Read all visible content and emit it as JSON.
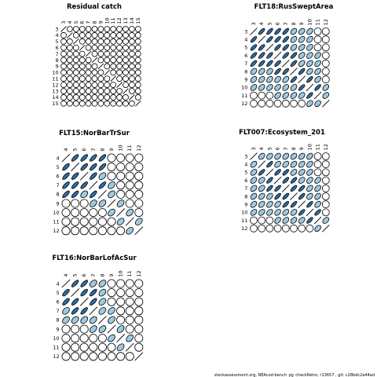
{
  "footer": "stockassessment.org, NEAcod-bench_pg_checkRetro, r13657 , git: c28bdc2a44ad",
  "colors": {
    "strong": "#2f6ea6",
    "light": "#9ec9e2",
    "empty": "#ffffff",
    "outline": "#000000"
  },
  "chart_data": [
    {
      "type": "heatmap",
      "title": "Residual catch",
      "ages": [
        3,
        4,
        5,
        6,
        7,
        8,
        9,
        10,
        11,
        12,
        13,
        14,
        15
      ],
      "note": "correlation matrix of residuals; all cells near zero (circles)",
      "cells": []
    },
    {
      "type": "heatmap",
      "title": "FLT18:RusSweptArea",
      "ages": [
        3,
        4,
        5,
        6,
        7,
        8,
        9,
        10,
        11,
        12
      ],
      "cells": [
        [
          3,
          4,
          "s"
        ],
        [
          3,
          5,
          "s"
        ],
        [
          3,
          6,
          "s"
        ],
        [
          3,
          7,
          "s"
        ],
        [
          3,
          8,
          "l"
        ],
        [
          3,
          9,
          "l"
        ],
        [
          3,
          10,
          "l"
        ],
        [
          4,
          5,
          "s"
        ],
        [
          4,
          6,
          "s"
        ],
        [
          4,
          7,
          "s"
        ],
        [
          4,
          8,
          "l"
        ],
        [
          4,
          9,
          "l"
        ],
        [
          4,
          10,
          "l"
        ],
        [
          5,
          6,
          "s"
        ],
        [
          5,
          7,
          "s"
        ],
        [
          5,
          8,
          "l"
        ],
        [
          5,
          9,
          "l"
        ],
        [
          5,
          10,
          "l"
        ],
        [
          6,
          7,
          "s"
        ],
        [
          6,
          8,
          "s"
        ],
        [
          6,
          9,
          "l"
        ],
        [
          6,
          10,
          "l"
        ],
        [
          6,
          11,
          "l"
        ],
        [
          7,
          8,
          "s"
        ],
        [
          7,
          9,
          "l"
        ],
        [
          7,
          10,
          "l"
        ],
        [
          7,
          11,
          "l"
        ],
        [
          8,
          9,
          "s"
        ],
        [
          8,
          10,
          "l"
        ],
        [
          8,
          11,
          "l"
        ],
        [
          9,
          10,
          "s"
        ],
        [
          9,
          11,
          "l"
        ],
        [
          10,
          11,
          "s"
        ],
        [
          10,
          12,
          "l"
        ],
        [
          11,
          12,
          "l"
        ]
      ]
    },
    {
      "type": "heatmap",
      "title": "FLT15:NorBarTrSur",
      "ages": [
        4,
        5,
        6,
        7,
        8,
        9,
        10,
        11,
        12
      ],
      "cells": [
        [
          4,
          5,
          "s"
        ],
        [
          4,
          6,
          "s"
        ],
        [
          4,
          7,
          "s"
        ],
        [
          4,
          8,
          "s"
        ],
        [
          5,
          6,
          "s"
        ],
        [
          5,
          7,
          "s"
        ],
        [
          5,
          8,
          "s"
        ],
        [
          6,
          7,
          "s"
        ],
        [
          6,
          8,
          "l"
        ],
        [
          7,
          8,
          "s"
        ],
        [
          7,
          9,
          "l"
        ],
        [
          8,
          9,
          "l"
        ],
        [
          9,
          10,
          "l"
        ],
        [
          10,
          11,
          "l"
        ],
        [
          11,
          12,
          "l"
        ]
      ]
    },
    {
      "type": "heatmap",
      "title": "FLT007:Ecosystem_201",
      "ages": [
        3,
        4,
        5,
        6,
        7,
        8,
        9,
        10,
        11,
        12
      ],
      "cells": [
        [
          3,
          4,
          "l"
        ],
        [
          3,
          5,
          "l"
        ],
        [
          3,
          6,
          "l"
        ],
        [
          3,
          7,
          "l"
        ],
        [
          3,
          8,
          "l"
        ],
        [
          3,
          9,
          "l"
        ],
        [
          3,
          10,
          "l"
        ],
        [
          4,
          5,
          "s"
        ],
        [
          4,
          6,
          "l"
        ],
        [
          4,
          7,
          "l"
        ],
        [
          4,
          8,
          "l"
        ],
        [
          4,
          9,
          "l"
        ],
        [
          4,
          10,
          "l"
        ],
        [
          5,
          6,
          "s"
        ],
        [
          5,
          7,
          "s"
        ],
        [
          5,
          8,
          "l"
        ],
        [
          5,
          9,
          "l"
        ],
        [
          5,
          10,
          "l"
        ],
        [
          6,
          7,
          "s"
        ],
        [
          6,
          8,
          "s"
        ],
        [
          6,
          9,
          "l"
        ],
        [
          6,
          10,
          "l"
        ],
        [
          6,
          11,
          "l"
        ],
        [
          7,
          8,
          "s"
        ],
        [
          7,
          9,
          "s"
        ],
        [
          7,
          10,
          "l"
        ],
        [
          7,
          11,
          "l"
        ],
        [
          8,
          9,
          "s"
        ],
        [
          8,
          10,
          "l"
        ],
        [
          8,
          11,
          "l"
        ],
        [
          9,
          10,
          "s"
        ],
        [
          9,
          11,
          "l"
        ],
        [
          10,
          11,
          "s"
        ],
        [
          11,
          12,
          "l"
        ]
      ]
    },
    {
      "type": "heatmap",
      "title": "FLT16:NorBarLofAcSur",
      "ages": [
        4,
        5,
        6,
        7,
        8,
        9,
        10,
        11,
        12
      ],
      "cells": [
        [
          4,
          5,
          "s"
        ],
        [
          4,
          6,
          "s"
        ],
        [
          4,
          7,
          "l"
        ],
        [
          4,
          8,
          "l"
        ],
        [
          5,
          6,
          "s"
        ],
        [
          5,
          7,
          "s"
        ],
        [
          5,
          8,
          "l"
        ],
        [
          6,
          7,
          "s"
        ],
        [
          6,
          8,
          "l"
        ],
        [
          7,
          8,
          "l"
        ],
        [
          7,
          9,
          "l"
        ],
        [
          8,
          9,
          "l"
        ],
        [
          9,
          10,
          "l"
        ],
        [
          10,
          11,
          "l"
        ]
      ]
    }
  ]
}
